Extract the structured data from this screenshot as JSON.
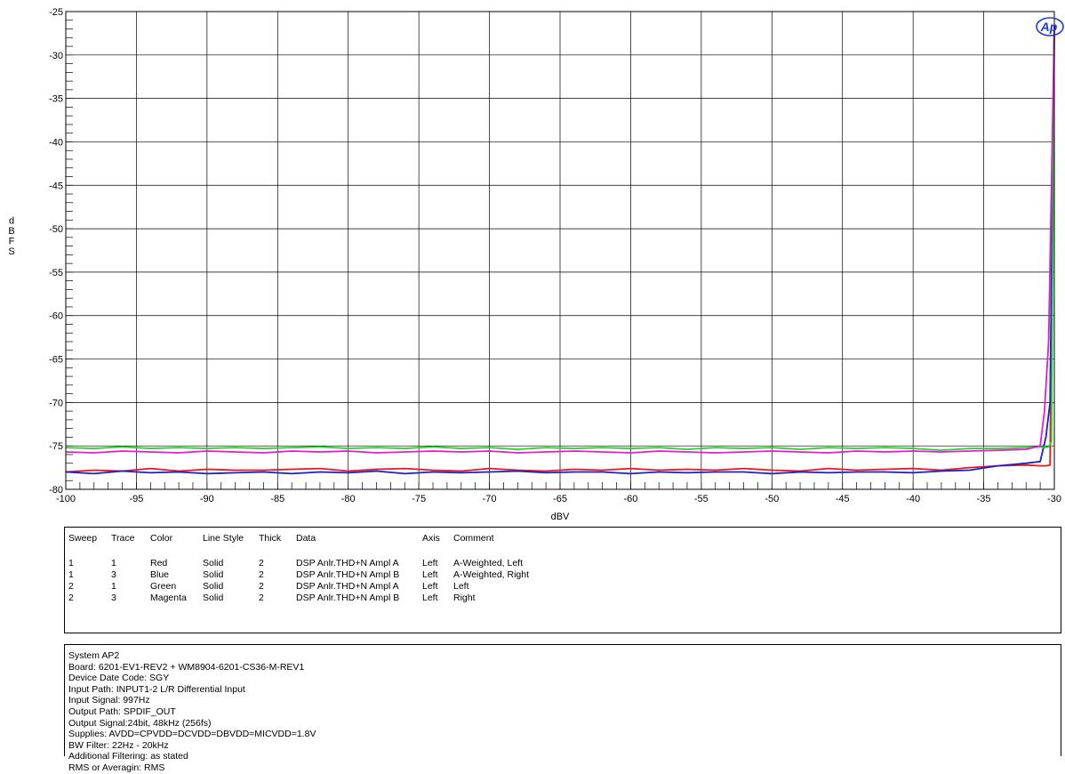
{
  "chart_data": {
    "type": "line",
    "title": "",
    "xlabel": "dBV",
    "ylabel": "dBFS",
    "xlim": [
      -100,
      -30
    ],
    "ylim": [
      -80,
      -25
    ],
    "x_ticks": [
      -100,
      -95,
      -90,
      -85,
      -80,
      -75,
      -70,
      -65,
      -60,
      -55,
      -50,
      -45,
      -40,
      -35,
      -30
    ],
    "y_ticks": [
      -25,
      -30,
      -35,
      -40,
      -45,
      -50,
      -55,
      -60,
      -65,
      -70,
      -75,
      -80
    ],
    "x_tick_labels": [
      "-100",
      "-95",
      "-90",
      "-85",
      "-80",
      "-75",
      "-70",
      "-65",
      "-60",
      "-55",
      "-50",
      "-45",
      "-40",
      "-35",
      "-30"
    ],
    "y_tick_labels": [
      "-25",
      "-30",
      "-35",
      "-40",
      "-45",
      "-50",
      "-55",
      "-60",
      "-65",
      "-70",
      "-75",
      "-80"
    ],
    "grid": true,
    "logo": "Ap",
    "series": [
      {
        "name": "Red",
        "color": "#e8171c",
        "x": [
          -100,
          -98,
          -96,
          -94,
          -92,
          -90,
          -88,
          -86,
          -84,
          -82,
          -80,
          -78,
          -76,
          -74,
          -72,
          -70,
          -68,
          -66,
          -64,
          -62,
          -60,
          -58,
          -56,
          -54,
          -52,
          -50,
          -48,
          -46,
          -44,
          -42,
          -40,
          -38,
          -36,
          -34,
          -32,
          -31,
          -30.6,
          -30.3,
          -30
        ],
        "y": [
          -78.0,
          -77.8,
          -77.9,
          -77.6,
          -77.9,
          -77.7,
          -77.8,
          -77.8,
          -77.7,
          -77.6,
          -77.9,
          -77.7,
          -77.6,
          -77.8,
          -77.9,
          -77.6,
          -77.8,
          -77.9,
          -77.7,
          -77.8,
          -77.6,
          -77.8,
          -77.7,
          -77.8,
          -77.6,
          -77.8,
          -77.9,
          -77.6,
          -77.8,
          -77.7,
          -77.6,
          -77.8,
          -77.5,
          -77.3,
          -77.2,
          -77.3,
          -77.3,
          -77.2,
          -26.5
        ]
      },
      {
        "name": "Blue",
        "color": "#1a21c8",
        "x": [
          -100,
          -98,
          -96,
          -94,
          -92,
          -90,
          -88,
          -86,
          -84,
          -82,
          -80,
          -78,
          -76,
          -74,
          -72,
          -70,
          -68,
          -66,
          -64,
          -62,
          -60,
          -58,
          -56,
          -54,
          -52,
          -50,
          -48,
          -46,
          -44,
          -42,
          -40,
          -38,
          -36,
          -34,
          -32,
          -31,
          -30.6,
          -30.3,
          -30
        ],
        "y": [
          -78.0,
          -78.2,
          -77.9,
          -78.1,
          -78.0,
          -78.2,
          -78.1,
          -78.0,
          -78.2,
          -78.0,
          -78.1,
          -77.9,
          -78.2,
          -78.0,
          -78.1,
          -78.0,
          -77.9,
          -78.1,
          -78.0,
          -78.0,
          -78.2,
          -78.0,
          -78.1,
          -78.0,
          -78.0,
          -78.2,
          -78.0,
          -78.1,
          -78.0,
          -78.0,
          -78.1,
          -77.9,
          -77.8,
          -77.3,
          -77.0,
          -76.8,
          -74.0,
          -70.0,
          -26.5
        ]
      },
      {
        "name": "Green",
        "color": "#20d81e",
        "x": [
          -100,
          -98,
          -96,
          -94,
          -92,
          -90,
          -88,
          -86,
          -84,
          -82,
          -80,
          -78,
          -76,
          -74,
          -72,
          -70,
          -68,
          -66,
          -64,
          -62,
          -60,
          -58,
          -56,
          -54,
          -52,
          -50,
          -48,
          -46,
          -44,
          -42,
          -40,
          -38,
          -36,
          -34,
          -32,
          -31,
          -30.7,
          -30.4,
          -30.2,
          -30
        ],
        "y": [
          -75.2,
          -75.3,
          -75.1,
          -75.3,
          -75.2,
          -75.3,
          -75.2,
          -75.3,
          -75.2,
          -75.1,
          -75.3,
          -75.2,
          -75.3,
          -75.1,
          -75.3,
          -75.2,
          -75.4,
          -75.2,
          -75.3,
          -75.2,
          -75.3,
          -75.2,
          -75.4,
          -75.2,
          -75.3,
          -75.2,
          -75.4,
          -75.2,
          -75.3,
          -75.2,
          -75.3,
          -75.5,
          -75.3,
          -75.3,
          -75.2,
          -75.1,
          -75.2,
          -75.1,
          -74.5,
          -26.5
        ]
      },
      {
        "name": "Magenta",
        "color": "#e41cd6",
        "x": [
          -100,
          -98,
          -96,
          -94,
          -92,
          -90,
          -88,
          -86,
          -84,
          -82,
          -80,
          -78,
          -76,
          -74,
          -72,
          -70,
          -68,
          -66,
          -64,
          -62,
          -60,
          -58,
          -56,
          -54,
          -52,
          -50,
          -48,
          -46,
          -44,
          -42,
          -40,
          -38,
          -36,
          -34,
          -32,
          -31,
          -30.7,
          -30.4,
          -30
        ],
        "y": [
          -75.7,
          -75.8,
          -75.6,
          -75.7,
          -75.8,
          -75.6,
          -75.7,
          -75.8,
          -75.6,
          -75.7,
          -75.6,
          -75.8,
          -75.7,
          -75.6,
          -75.7,
          -75.6,
          -75.8,
          -75.7,
          -75.6,
          -75.7,
          -75.8,
          -75.6,
          -75.7,
          -75.8,
          -75.7,
          -75.6,
          -75.7,
          -75.8,
          -75.6,
          -75.7,
          -75.6,
          -75.7,
          -75.6,
          -75.5,
          -75.4,
          -75.0,
          -71.0,
          -63.0,
          -26.5
        ]
      }
    ]
  },
  "legend": {
    "headers": [
      "Sweep",
      "Trace",
      "Color",
      "Line Style",
      "Thick",
      "Data",
      "Axis",
      "Comment"
    ],
    "rows": [
      [
        "1",
        "1",
        "Red",
        "Solid",
        "2",
        "DSP Anlr.THD+N Ampl A",
        "Left",
        "A-Weighted, Left"
      ],
      [
        "1",
        "3",
        "Blue",
        "Solid",
        "2",
        "DSP Anlr.THD+N Ampl B",
        "Left",
        "A-Weighted, Right"
      ],
      [
        "2",
        "1",
        "Green",
        "Solid",
        "2",
        "DSP Anlr.THD+N Ampl A",
        "Left",
        "Left"
      ],
      [
        "2",
        "3",
        "Magenta",
        "Solid",
        "2",
        "DSP Anlr.THD+N Ampl B",
        "Left",
        "Right"
      ]
    ]
  },
  "notes": [
    "System AP2",
    "Board: 6201-EV1-REV2 + WM8904-6201-CS36-M-REV1",
    "Device Date Code: SGY",
    "Input Path: INPUT1-2 L/R Differential Input",
    "Input Signal: 997Hz",
    "Output Path: SPDIF_OUT",
    "Output Signal:24bit, 48kHz (256fs)",
    "Supplies: AVDD=CPVDD=DCVDD=DBVDD=MICVDD=1.8V",
    "BW Filter: 22Hz - 20kHz",
    "Additional Filtering: as stated",
    "RMS or Averagin: RMS"
  ]
}
